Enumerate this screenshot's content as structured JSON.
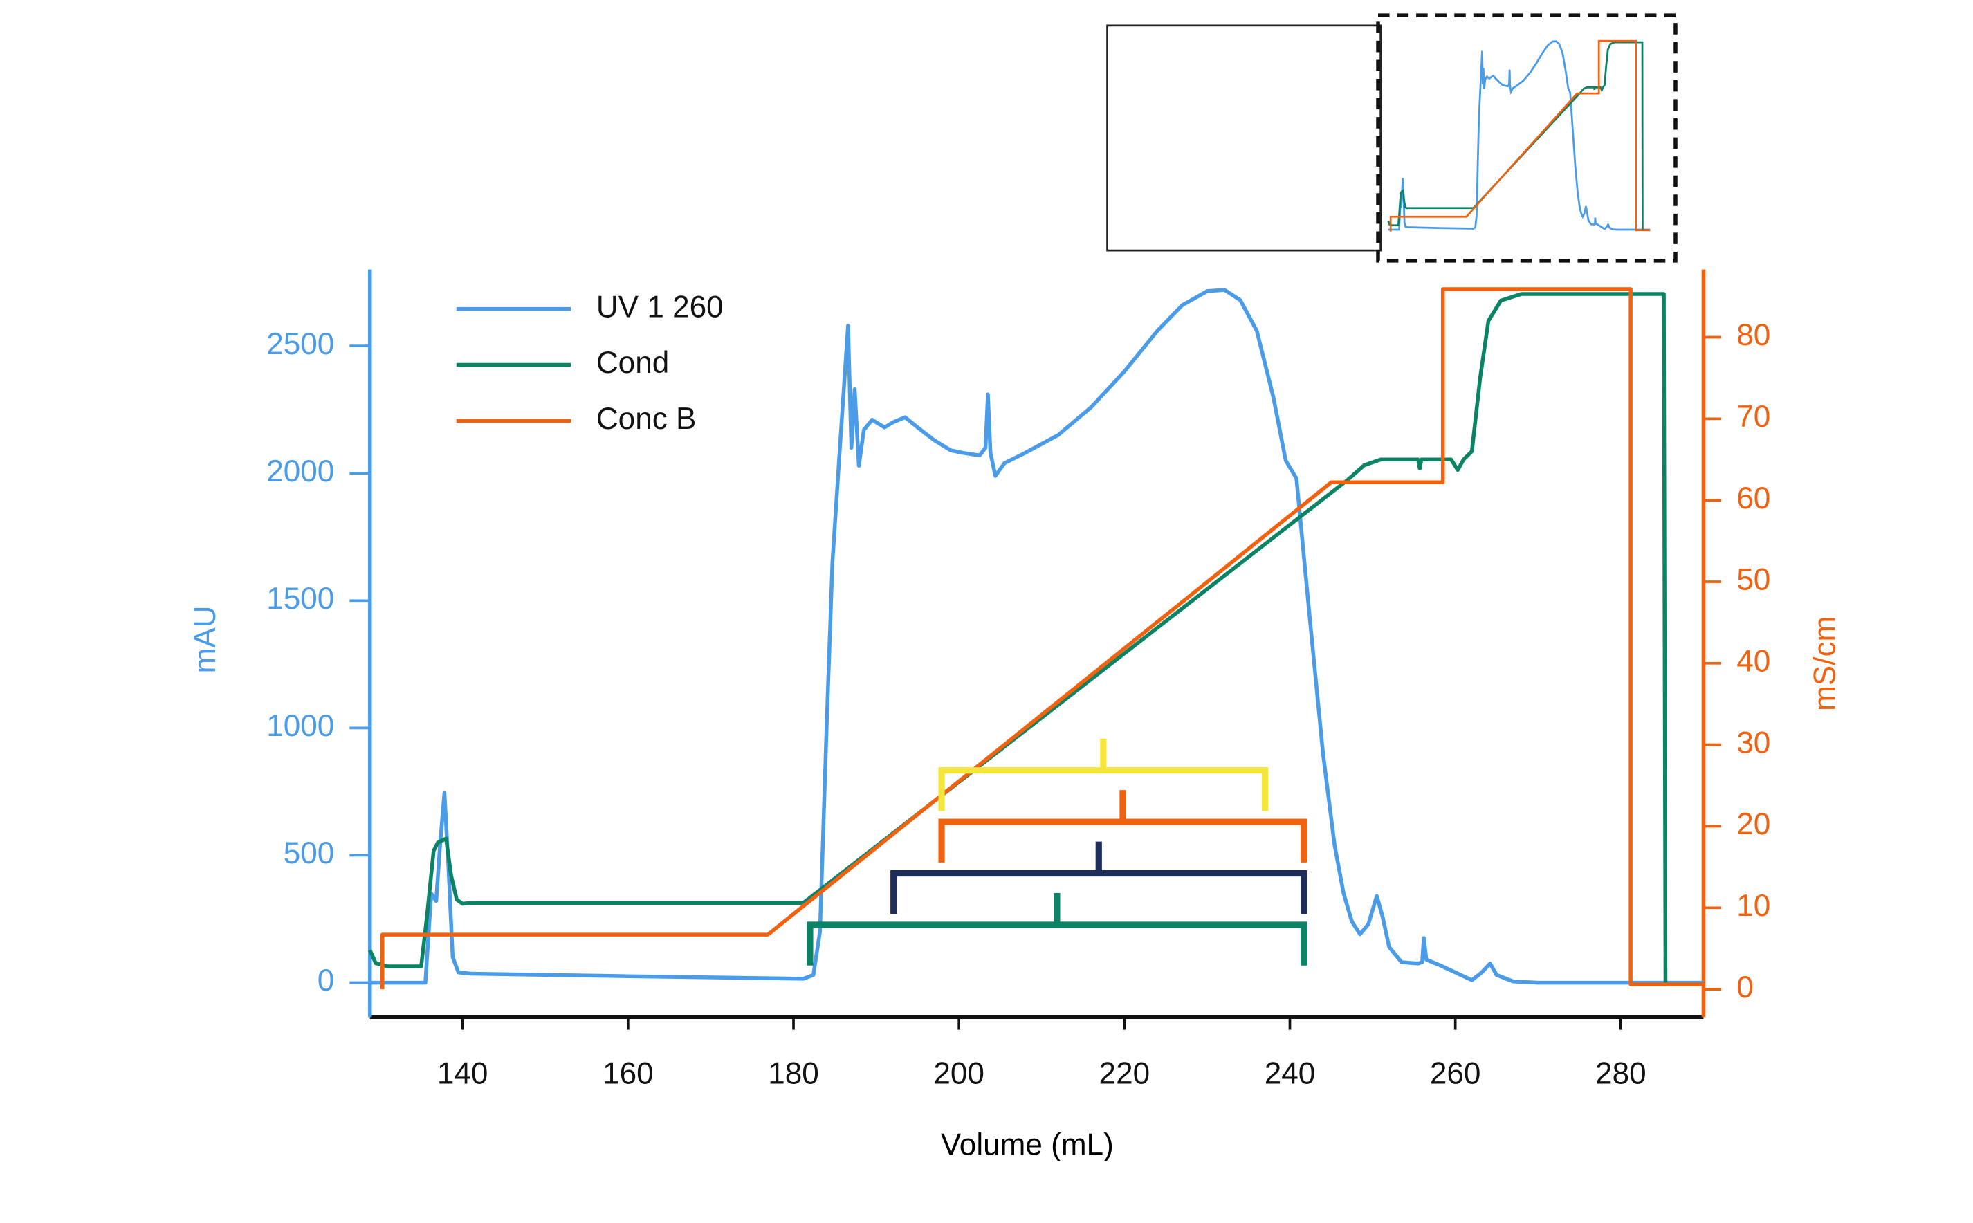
{
  "chart_data": {
    "type": "line",
    "xlabel": "Volume (mL)",
    "ylabel": "mAU",
    "y2label": "mS/cm",
    "xlim": [
      128.8,
      290
    ],
    "ylim": [
      -135,
      2800
    ],
    "y2lim": [
      -3.4,
      88.3
    ],
    "xticks": [
      140,
      160,
      180,
      200,
      220,
      240,
      260,
      280
    ],
    "yticks": [
      0,
      500,
      1000,
      1500,
      2000,
      2500
    ],
    "y2ticks": [
      0,
      10,
      20,
      30,
      40,
      50,
      60,
      70,
      80
    ],
    "ycolor": "#4a9be8",
    "y2color": "#f0620f",
    "legend": "upper left",
    "series": [
      {
        "name": "UV 1 260",
        "color": "#4a9be8",
        "x": [
          128.8,
          135.5,
          136.2,
          136.8,
          137.3,
          137.8,
          138.3,
          138.8,
          139.5,
          141,
          160,
          181.2,
          182.4,
          183.2,
          184,
          184.7,
          185.5,
          186.6,
          187,
          187.4,
          187.9,
          188.5,
          189.5,
          191,
          192,
          193.5,
          195,
          197,
          199,
          200.5,
          202.5,
          203.2,
          203.5,
          203.8,
          204.4,
          205.5,
          208,
          212,
          216,
          220,
          224,
          227,
          230,
          232.1,
          234,
          236,
          238,
          239.5,
          240.8,
          242.5,
          244,
          245.4,
          246.5,
          247.5,
          248.5,
          249.5,
          250.5,
          251.2,
          252,
          253.5,
          255.5,
          256,
          256.2,
          256.5,
          258,
          260,
          262,
          263.2,
          264.2,
          265,
          267,
          270,
          282,
          290
        ],
        "values": [
          0,
          0,
          350,
          320,
          550,
          745,
          450,
          100,
          40,
          35,
          25,
          15,
          30,
          200,
          1000,
          1650,
          2050,
          2580,
          2100,
          2330,
          2030,
          2170,
          2210,
          2180,
          2200,
          2220,
          2180,
          2130,
          2090,
          2080,
          2070,
          2100,
          2310,
          2080,
          1990,
          2040,
          2080,
          2150,
          2260,
          2400,
          2560,
          2660,
          2715,
          2720,
          2680,
          2560,
          2300,
          2050,
          1980,
          1400,
          900,
          540,
          350,
          240,
          190,
          230,
          340,
          260,
          140,
          80,
          75,
          80,
          175,
          90,
          70,
          40,
          10,
          40,
          75,
          30,
          5,
          0,
          0,
          0
        ]
      },
      {
        "name": "Cond",
        "color": "#0b8466",
        "axis": "y2",
        "x": [
          128.8,
          129.5,
          131,
          135,
          135.7,
          136.5,
          137,
          138,
          138.6,
          139.3,
          140,
          141,
          181.2,
          247,
          249,
          251,
          255.5,
          255.7,
          255.9,
          259.5,
          260.3,
          261,
          262,
          263,
          264,
          265.5,
          268,
          285.2,
          285.4,
          290
        ],
        "values": [
          4.8,
          3.2,
          2.8,
          2.8,
          9,
          17,
          18,
          18.5,
          14,
          11,
          10.5,
          10.6,
          10.6,
          62.5,
          64.3,
          65,
          65,
          63.9,
          65,
          65,
          63.7,
          65,
          66,
          75,
          82,
          84.5,
          85.3,
          85.3,
          0.6,
          0.6
        ]
      },
      {
        "name": "Conc B",
        "color": "#f0620f",
        "axis": "y2",
        "x": [
          130.3,
          130.3,
          176.9,
          245,
          258.5,
          258.5,
          281.2,
          281.2,
          290
        ],
        "values": [
          0,
          6.7,
          6.7,
          62.2,
          62.2,
          85.9,
          85.9,
          0.6,
          0.6
        ]
      }
    ],
    "pools": [
      {
        "color": "#f5e53a",
        "x": [
          197.9,
          237
        ]
      },
      {
        "color": "#f0620f",
        "x": [
          197.9,
          241.7
        ]
      },
      {
        "color": "#1f2d5a",
        "x": [
          192.1,
          241.7
        ]
      },
      {
        "color": "#0b8466",
        "x": [
          182,
          241.7
        ]
      }
    ]
  }
}
